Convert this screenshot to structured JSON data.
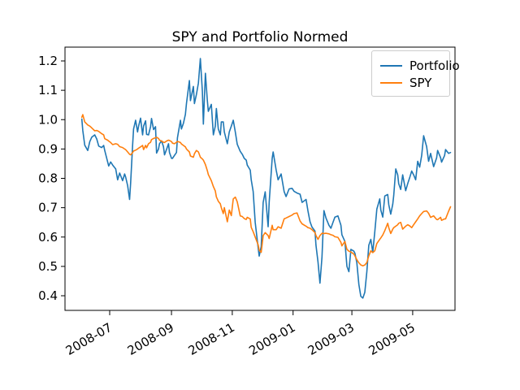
{
  "figure": {
    "title": "SPY and Portfolio Normed",
    "background": "#ffffff"
  },
  "chart_data": {
    "type": "line",
    "title": "SPY and Portfolio Normed",
    "xlabel": "",
    "ylabel": "",
    "grid": false,
    "x_axis": {
      "kind": "date",
      "tick_labels": [
        "2008-07",
        "2008-09",
        "2008-11",
        "2009-01",
        "2009-03",
        "2009-05"
      ],
      "tick_dates": [
        "2008-07-01",
        "2008-09-01",
        "2008-11-01",
        "2009-01-01",
        "2009-03-01",
        "2009-05-01"
      ],
      "tick_rotation_deg": 30,
      "range": [
        "2008-05-17",
        "2009-06-12"
      ]
    },
    "y_axis": {
      "tick_labels": [
        "0.4",
        "0.5",
        "0.6",
        "0.7",
        "0.8",
        "0.9",
        "1.0",
        "1.1",
        "1.2"
      ],
      "ticks": [
        0.4,
        0.5,
        0.6,
        0.7,
        0.8,
        0.9,
        1.0,
        1.1,
        1.2
      ],
      "range": [
        0.35,
        1.247
      ]
    },
    "legend": {
      "position": "upper-right",
      "entries": [
        "Portfolio",
        "SPY"
      ]
    },
    "series": [
      {
        "name": "Portfolio",
        "color": "#1f77b4"
      },
      {
        "name": "SPY",
        "color": "#ff7f0e"
      }
    ],
    "rows_format": [
      "date",
      "Portfolio",
      "SPY"
    ],
    "rows": [
      [
        "2008-06-03",
        1.002,
        1.008
      ],
      [
        "2008-06-04",
        0.963,
        1.017
      ],
      [
        "2008-06-06",
        0.913,
        0.992
      ],
      [
        "2008-06-09",
        0.895,
        0.982
      ],
      [
        "2008-06-11",
        0.925,
        0.978
      ],
      [
        "2008-06-13",
        0.94,
        0.972
      ],
      [
        "2008-06-16",
        0.948,
        0.962
      ],
      [
        "2008-06-18",
        0.934,
        0.963
      ],
      [
        "2008-06-20",
        0.91,
        0.96
      ],
      [
        "2008-06-23",
        0.905,
        0.952
      ],
      [
        "2008-06-25",
        0.912,
        0.948
      ],
      [
        "2008-06-26",
        0.895,
        0.935
      ],
      [
        "2008-06-29",
        0.856,
        0.93
      ],
      [
        "2008-06-30",
        0.842,
        0.927
      ],
      [
        "2008-07-02",
        0.856,
        0.922
      ],
      [
        "2008-07-04",
        0.845,
        0.915
      ],
      [
        "2008-07-07",
        0.832,
        0.918
      ],
      [
        "2008-07-09",
        0.795,
        0.916
      ],
      [
        "2008-07-11",
        0.818,
        0.908
      ],
      [
        "2008-07-14",
        0.792,
        0.905
      ],
      [
        "2008-07-16",
        0.815,
        0.9
      ],
      [
        "2008-07-17",
        0.805,
        0.898
      ],
      [
        "2008-07-19",
        0.775,
        0.89
      ],
      [
        "2008-07-21",
        0.728,
        0.882
      ],
      [
        "2008-07-22",
        0.785,
        0.88
      ],
      [
        "2008-07-24",
        0.912,
        0.888
      ],
      [
        "2008-07-25",
        0.968,
        0.893
      ],
      [
        "2008-07-27",
        0.998,
        0.896
      ],
      [
        "2008-07-29",
        0.958,
        0.9
      ],
      [
        "2008-07-30",
        0.978,
        0.903
      ],
      [
        "2008-08-01",
        1.005,
        0.907
      ],
      [
        "2008-08-03",
        0.948,
        0.912
      ],
      [
        "2008-08-04",
        0.978,
        0.898
      ],
      [
        "2008-08-06",
        0.996,
        0.912
      ],
      [
        "2008-08-07",
        0.95,
        0.904
      ],
      [
        "2008-08-09",
        0.948,
        0.918
      ],
      [
        "2008-08-11",
        0.976,
        0.923
      ],
      [
        "2008-08-12",
        1.004,
        0.932
      ],
      [
        "2008-08-14",
        0.966,
        0.936
      ],
      [
        "2008-08-16",
        0.976,
        0.938
      ],
      [
        "2008-08-17",
        0.886,
        0.94
      ],
      [
        "2008-08-19",
        0.9,
        0.936
      ],
      [
        "2008-08-20",
        0.918,
        0.93
      ],
      [
        "2008-08-22",
        0.928,
        0.927
      ],
      [
        "2008-08-24",
        0.908,
        0.923
      ],
      [
        "2008-08-25",
        0.88,
        0.922
      ],
      [
        "2008-08-27",
        0.898,
        0.927
      ],
      [
        "2008-08-29",
        0.918,
        0.93
      ],
      [
        "2008-08-30",
        0.888,
        0.929
      ],
      [
        "2008-09-01",
        0.868,
        0.925
      ],
      [
        "2008-09-02",
        0.868,
        0.92
      ],
      [
        "2008-09-04",
        0.878,
        0.918
      ],
      [
        "2008-09-06",
        0.888,
        0.923
      ],
      [
        "2008-09-07",
        0.938,
        0.926
      ],
      [
        "2008-09-10",
        0.998,
        0.922
      ],
      [
        "2008-09-11",
        0.968,
        0.917
      ],
      [
        "2008-09-13",
        0.988,
        0.912
      ],
      [
        "2008-09-15",
        1.018,
        0.907
      ],
      [
        "2008-09-16",
        1.055,
        0.9
      ],
      [
        "2008-09-19",
        1.133,
        0.89
      ],
      [
        "2008-09-20",
        1.065,
        0.876
      ],
      [
        "2008-09-23",
        1.113,
        0.872
      ],
      [
        "2008-09-24",
        1.055,
        0.884
      ],
      [
        "2008-09-26",
        1.085,
        0.895
      ],
      [
        "2008-09-28",
        1.125,
        0.89
      ],
      [
        "2008-09-30",
        1.208,
        0.872
      ],
      [
        "2008-10-02",
        1.095,
        0.866
      ],
      [
        "2008-10-03",
        0.985,
        0.862
      ],
      [
        "2008-10-05",
        1.158,
        0.847
      ],
      [
        "2008-10-07",
        1.065,
        0.826
      ],
      [
        "2008-10-08",
        1.028,
        0.813
      ],
      [
        "2008-10-11",
        1.052,
        0.792
      ],
      [
        "2008-10-13",
        0.948,
        0.772
      ],
      [
        "2008-10-15",
        0.978,
        0.757
      ],
      [
        "2008-10-16",
        1.038,
        0.737
      ],
      [
        "2008-10-18",
        0.968,
        0.722
      ],
      [
        "2008-10-20",
        0.948,
        0.713
      ],
      [
        "2008-10-21",
        0.992,
        0.7
      ],
      [
        "2008-10-23",
        0.992,
        0.68
      ],
      [
        "2008-10-24",
        0.958,
        0.7
      ],
      [
        "2008-10-27",
        0.918,
        0.652
      ],
      [
        "2008-10-29",
        0.958,
        0.692
      ],
      [
        "2008-10-31",
        0.978,
        0.673
      ],
      [
        "2008-11-02",
        0.998,
        0.73
      ],
      [
        "2008-11-04",
        0.958,
        0.736
      ],
      [
        "2008-11-06",
        0.916,
        0.72
      ],
      [
        "2008-11-09",
        0.892,
        0.672
      ],
      [
        "2008-11-11",
        0.882,
        0.67
      ],
      [
        "2008-11-13",
        0.868,
        0.663
      ],
      [
        "2008-11-15",
        0.862,
        0.66
      ],
      [
        "2008-11-16",
        0.845,
        0.667
      ],
      [
        "2008-11-19",
        0.828,
        0.662
      ],
      [
        "2008-11-20",
        0.795,
        0.633
      ],
      [
        "2008-11-22",
        0.755,
        0.618
      ],
      [
        "2008-11-24",
        0.65,
        0.6
      ],
      [
        "2008-11-27",
        0.562,
        0.573
      ],
      [
        "2008-11-28",
        0.535,
        0.555
      ],
      [
        "2008-11-30",
        0.568,
        0.548
      ],
      [
        "2008-12-02",
        0.718,
        0.605
      ],
      [
        "2008-12-04",
        0.754,
        0.615
      ],
      [
        "2008-12-07",
        0.635,
        0.605
      ],
      [
        "2008-12-08",
        0.718,
        0.595
      ],
      [
        "2008-12-11",
        0.868,
        0.64
      ],
      [
        "2008-12-12",
        0.89,
        0.625
      ],
      [
        "2008-12-15",
        0.828,
        0.625
      ],
      [
        "2008-12-17",
        0.795,
        0.635
      ],
      [
        "2008-12-20",
        0.815,
        0.63
      ],
      [
        "2008-12-23",
        0.755,
        0.662
      ],
      [
        "2008-12-25",
        0.738,
        0.665
      ],
      [
        "2008-12-28",
        0.764,
        0.67
      ],
      [
        "2008-12-31",
        0.766,
        0.675
      ],
      [
        "2009-01-02",
        0.756,
        0.68
      ],
      [
        "2009-01-05",
        0.75,
        0.682
      ],
      [
        "2009-01-08",
        0.746,
        0.655
      ],
      [
        "2009-01-10",
        0.718,
        0.645
      ],
      [
        "2009-01-14",
        0.728,
        0.637
      ],
      [
        "2009-01-16",
        0.688,
        0.632
      ],
      [
        "2009-01-18",
        0.652,
        0.63
      ],
      [
        "2009-01-20",
        0.634,
        0.625
      ],
      [
        "2009-01-23",
        0.62,
        0.615
      ],
      [
        "2009-01-24",
        0.572,
        0.605
      ],
      [
        "2009-01-26",
        0.515,
        0.592
      ],
      [
        "2009-01-28",
        0.443,
        0.605
      ],
      [
        "2009-01-30",
        0.532,
        0.613
      ],
      [
        "2009-02-01",
        0.69,
        0.612
      ],
      [
        "2009-02-03",
        0.665,
        0.613
      ],
      [
        "2009-02-06",
        0.64,
        0.611
      ],
      [
        "2009-02-08",
        0.63,
        0.608
      ],
      [
        "2009-02-10",
        0.65,
        0.606
      ],
      [
        "2009-02-12",
        0.668,
        0.601
      ],
      [
        "2009-02-15",
        0.672,
        0.599
      ],
      [
        "2009-02-18",
        0.64,
        0.582
      ],
      [
        "2009-02-19",
        0.608,
        0.57
      ],
      [
        "2009-02-22",
        0.585,
        0.585
      ],
      [
        "2009-02-24",
        0.5,
        0.558
      ],
      [
        "2009-02-26",
        0.482,
        0.552
      ],
      [
        "2009-02-28",
        0.558,
        0.549
      ],
      [
        "2009-03-03",
        0.552,
        0.542
      ],
      [
        "2009-03-04",
        0.545,
        0.536
      ],
      [
        "2009-03-06",
        0.512,
        0.523
      ],
      [
        "2009-03-08",
        0.438,
        0.512
      ],
      [
        "2009-03-10",
        0.398,
        0.505
      ],
      [
        "2009-03-12",
        0.392,
        0.502
      ],
      [
        "2009-03-14",
        0.412,
        0.505
      ],
      [
        "2009-03-16",
        0.482,
        0.513
      ],
      [
        "2009-03-18",
        0.572,
        0.536
      ],
      [
        "2009-03-20",
        0.592,
        0.553
      ],
      [
        "2009-03-22",
        0.548,
        0.547
      ],
      [
        "2009-03-24",
        0.618,
        0.553
      ],
      [
        "2009-03-26",
        0.695,
        0.578
      ],
      [
        "2009-03-29",
        0.73,
        0.592
      ],
      [
        "2009-03-30",
        0.692,
        0.597
      ],
      [
        "2009-04-01",
        0.668,
        0.607
      ],
      [
        "2009-04-03",
        0.74,
        0.622
      ],
      [
        "2009-04-06",
        0.745,
        0.647
      ],
      [
        "2009-04-07",
        0.71,
        0.632
      ],
      [
        "2009-04-09",
        0.678,
        0.612
      ],
      [
        "2009-04-11",
        0.712,
        0.627
      ],
      [
        "2009-04-12",
        0.742,
        0.632
      ],
      [
        "2009-04-14",
        0.832,
        0.637
      ],
      [
        "2009-04-16",
        0.812,
        0.642
      ],
      [
        "2009-04-17",
        0.782,
        0.647
      ],
      [
        "2009-04-19",
        0.762,
        0.65
      ],
      [
        "2009-04-21",
        0.812,
        0.627
      ],
      [
        "2009-04-24",
        0.758,
        0.637
      ],
      [
        "2009-04-26",
        0.782,
        0.642
      ],
      [
        "2009-04-28",
        0.802,
        0.638
      ],
      [
        "2009-04-30",
        0.825,
        0.632
      ],
      [
        "2009-05-02",
        0.812,
        0.642
      ],
      [
        "2009-05-04",
        0.795,
        0.652
      ],
      [
        "2009-05-06",
        0.858,
        0.662
      ],
      [
        "2009-05-08",
        0.838,
        0.672
      ],
      [
        "2009-05-10",
        0.878,
        0.68
      ],
      [
        "2009-05-12",
        0.945,
        0.687
      ],
      [
        "2009-05-15",
        0.908,
        0.689
      ],
      [
        "2009-05-17",
        0.858,
        0.681
      ],
      [
        "2009-05-19",
        0.885,
        0.667
      ],
      [
        "2009-05-22",
        0.84,
        0.672
      ],
      [
        "2009-05-25",
        0.87,
        0.66
      ],
      [
        "2009-05-26",
        0.895,
        0.659
      ],
      [
        "2009-05-29",
        0.87,
        0.667
      ],
      [
        "2009-05-30",
        0.855,
        0.657
      ],
      [
        "2009-06-02",
        0.878,
        0.662
      ],
      [
        "2009-06-03",
        0.898,
        0.662
      ],
      [
        "2009-06-06",
        0.885,
        0.688
      ],
      [
        "2009-06-08",
        0.888,
        0.703
      ]
    ]
  }
}
